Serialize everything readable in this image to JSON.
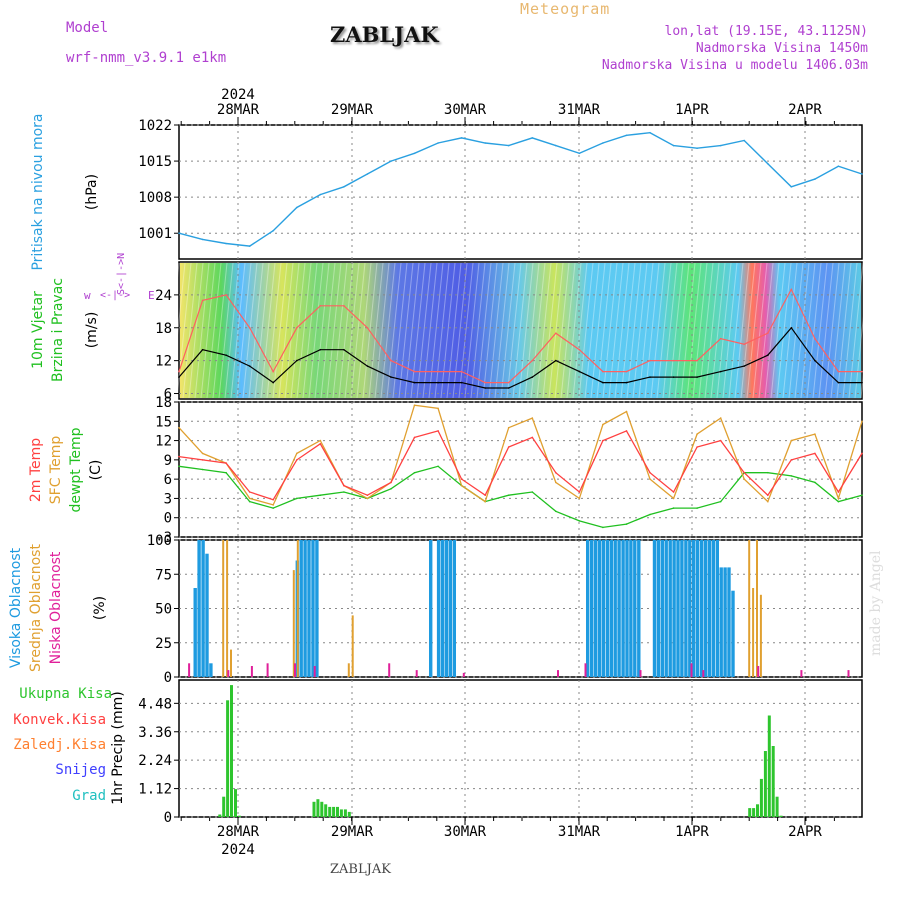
{
  "header": {
    "model_label": "Model",
    "model_name": "wrf-nmm_v3.9.1 e1km",
    "station": "ZABLJAK",
    "title": "Meteogram",
    "lonlat": "lon,lat (19.15E, 43.1125N)",
    "elevation": "Nadmorska Visina 1450m",
    "model_elevation": "Nadmorska Visina u modelu 1406.03m"
  },
  "footer": {
    "station": "ZABLJAK",
    "watermark": "made by Angel"
  },
  "colors": {
    "pressure": "#2aa0e0",
    "wind_speed": "#000000",
    "gust": "#ff6060",
    "t2m": "#ff4040",
    "sfc_temp": "#e0a030",
    "dewpt": "#20c020",
    "cloud_high": "#1e9be0",
    "cloud_mid": "#e0a030",
    "cloud_low": "#e0209a",
    "precip_total": "#2ec52e",
    "convective": "#ff4040",
    "frozen": "#ff8030",
    "snow": "#4040ff",
    "graupel": "#20c0c0",
    "purple": "#b040d0"
  },
  "time_axis": {
    "year": "2024",
    "day_labels": [
      "28MAR",
      "29MAR",
      "30MAR",
      "31MAR",
      "1APR",
      "2APR"
    ]
  },
  "chart_data": [
    {
      "type": "line",
      "title": "Pritisak na nivou mora",
      "ylabel": "(hPa)",
      "ylim": [
        996,
        1022
      ],
      "yticks": [
        "1001",
        "1008",
        "1015",
        "1022"
      ],
      "x_hours": [
        0,
        6,
        12,
        18,
        24,
        30,
        36,
        42,
        48,
        54,
        60,
        66,
        72,
        78,
        84,
        90,
        96,
        102,
        108,
        114,
        120,
        126,
        132,
        138,
        144,
        150,
        156,
        162,
        168,
        174
      ],
      "series": [
        {
          "values": [
            1001.0,
            999.8,
            999.0,
            998.5,
            1001.5,
            1006.0,
            1008.5,
            1010.0,
            1012.5,
            1015.0,
            1016.5,
            1018.5,
            1019.5,
            1018.5,
            1018.0,
            1019.5,
            1018.0,
            1016.5,
            1018.5,
            1020.0,
            1020.5,
            1018.0,
            1017.5,
            1018.0,
            1019.0,
            1014.5,
            1010.0,
            1011.5,
            1014.0,
            1012.5
          ]
        }
      ]
    },
    {
      "type": "line",
      "title": "10m Vjetar Brzina i Pravac",
      "ylabel": "(m/s)",
      "ylim": [
        5,
        30
      ],
      "yticks": [
        "6",
        "12",
        "18",
        "24"
      ],
      "direction_key": {
        "left": "w",
        "top": "N",
        "right": "E",
        "bottom": "S"
      },
      "x_hours": [
        0,
        6,
        12,
        18,
        24,
        30,
        36,
        42,
        48,
        54,
        60,
        66,
        72,
        78,
        84,
        90,
        96,
        102,
        108,
        114,
        120,
        126,
        132,
        138,
        144,
        150,
        156,
        162,
        168,
        174
      ],
      "series": [
        {
          "values": [
            9,
            14,
            13,
            11,
            8,
            12,
            14,
            14,
            11,
            9,
            8,
            8,
            8,
            7,
            7,
            9,
            12,
            10,
            8,
            8,
            9,
            9,
            9,
            10,
            11,
            13,
            18,
            12,
            8,
            8
          ]
        },
        {
          "values": [
            10,
            23,
            24,
            18,
            10,
            18,
            22,
            22,
            18,
            12,
            10,
            10,
            10,
            8,
            8,
            12,
            17,
            14,
            10,
            10,
            12,
            12,
            12,
            16,
            15,
            17,
            25,
            16,
            10,
            10
          ]
        }
      ]
    },
    {
      "type": "line",
      "title": "2m Temp / SFC Temp / dewpt Temp",
      "ylabel": "(C)",
      "ylim": [
        -3,
        18
      ],
      "yticks": [
        "-3",
        "0",
        "3",
        "6",
        "9",
        "12",
        "15",
        "18"
      ],
      "legend": [
        "2m Temp",
        "SFC Temp",
        "dewpt Temp"
      ],
      "x_hours": [
        0,
        6,
        12,
        18,
        24,
        30,
        36,
        42,
        48,
        54,
        60,
        66,
        72,
        78,
        84,
        90,
        96,
        102,
        108,
        114,
        120,
        126,
        132,
        138,
        144,
        150,
        156,
        162,
        168,
        174
      ],
      "series": [
        {
          "name": "2m Temp",
          "values": [
            9.5,
            9.0,
            8.5,
            4.0,
            2.8,
            9.0,
            11.5,
            5.0,
            3.5,
            5.5,
            12.5,
            13.5,
            6.0,
            3.5,
            11.0,
            12.5,
            7.0,
            4.0,
            12.0,
            13.5,
            7.0,
            4.0,
            11.0,
            12.0,
            7.0,
            3.5,
            9.0,
            10.0,
            4.0,
            10.0
          ]
        },
        {
          "name": "SFC Temp",
          "values": [
            14.0,
            10.0,
            8.5,
            3.0,
            2.0,
            10.0,
            12.0,
            5.0,
            3.0,
            5.5,
            17.5,
            17.0,
            5.0,
            2.5,
            14.0,
            15.5,
            5.5,
            3.0,
            14.5,
            16.5,
            6.0,
            3.0,
            13.0,
            15.5,
            6.0,
            2.5,
            12.0,
            13.0,
            3.0,
            15.0
          ]
        },
        {
          "name": "dewpt Temp",
          "values": [
            8.0,
            7.5,
            7.0,
            2.5,
            1.5,
            3.0,
            3.5,
            4.0,
            3.0,
            4.5,
            7.0,
            8.0,
            5.0,
            2.5,
            3.5,
            4.0,
            1.0,
            -0.5,
            -1.5,
            -1.0,
            0.5,
            1.5,
            1.5,
            2.5,
            7.0,
            7.0,
            6.5,
            5.5,
            2.5,
            3.5
          ]
        }
      ]
    },
    {
      "type": "bar",
      "title": "Visoka / Srednja / Niska Oblacnost",
      "ylabel": "(%)",
      "ylim": [
        0,
        100
      ],
      "yticks": [
        "0",
        "25",
        "50",
        "75",
        "100"
      ],
      "legend": [
        "Visoka Oblacnost",
        "Srednja Oblacnost",
        "Niska Oblacnost"
      ],
      "series": [
        {
          "name": "Visoka Oblacnost",
          "x_hours": [
            4,
            5,
            6,
            7,
            8,
            30,
            31,
            32,
            33,
            34,
            35,
            64,
            66,
            67,
            68,
            69,
            70,
            104,
            105,
            106,
            107,
            108,
            109,
            110,
            111,
            112,
            113,
            114,
            115,
            116,
            117,
            121,
            122,
            123,
            124,
            125,
            126,
            127,
            128,
            129,
            130,
            131,
            132,
            133,
            134,
            135,
            136,
            137,
            138,
            139,
            140,
            141
          ],
          "values": [
            65,
            100,
            100,
            90,
            10,
            85,
            100,
            100,
            100,
            100,
            100,
            100,
            100,
            100,
            100,
            100,
            100,
            100,
            100,
            100,
            100,
            100,
            100,
            100,
            100,
            100,
            100,
            100,
            100,
            100,
            100,
            100,
            100,
            100,
            100,
            100,
            100,
            100,
            100,
            100,
            100,
            100,
            100,
            100,
            100,
            100,
            100,
            100,
            80,
            80,
            80,
            63
          ]
        },
        {
          "name": "Srednja Oblacnost",
          "x_hours": [
            11,
            12,
            13,
            29,
            30,
            43,
            44,
            145,
            146,
            147,
            148
          ],
          "values": [
            100,
            100,
            20,
            78,
            100,
            10,
            45,
            100,
            65,
            100,
            60
          ]
        },
        {
          "name": "Niska Oblacnost",
          "x_hours": [
            2,
            12,
            18,
            22,
            29,
            34,
            53,
            60,
            72,
            96,
            103,
            117,
            130,
            133,
            147,
            158,
            170
          ],
          "values": [
            10,
            5,
            8,
            10,
            10,
            8,
            10,
            5,
            3,
            5,
            10,
            5,
            10,
            5,
            8,
            5,
            5
          ]
        }
      ]
    },
    {
      "type": "bar",
      "title": "1hr Precip",
      "ylabel": "1hr Precip (mm)",
      "ylim": [
        0,
        5.4
      ],
      "yticks": [
        "0",
        "1.12",
        "2.24",
        "3.36",
        "4.48"
      ],
      "legend": [
        "Ukupna Kisa",
        "Konvek.Kisa",
        "Zaledj.Kisa",
        "Snijeg",
        "Grad"
      ],
      "series": [
        {
          "name": "Ukupna Kisa",
          "x_hours": [
            10,
            11,
            12,
            13,
            14,
            15,
            34,
            35,
            36,
            37,
            38,
            39,
            40,
            41,
            42,
            43,
            145,
            146,
            147,
            148,
            149,
            150,
            151,
            152,
            153
          ],
          "values": [
            0.1,
            0.8,
            4.6,
            5.2,
            1.1,
            0.05,
            0.6,
            0.7,
            0.6,
            0.5,
            0.4,
            0.4,
            0.4,
            0.3,
            0.3,
            0.2,
            0.35,
            0.35,
            0.5,
            1.5,
            2.6,
            4.0,
            2.8,
            0.8,
            0.05
          ]
        }
      ]
    }
  ]
}
